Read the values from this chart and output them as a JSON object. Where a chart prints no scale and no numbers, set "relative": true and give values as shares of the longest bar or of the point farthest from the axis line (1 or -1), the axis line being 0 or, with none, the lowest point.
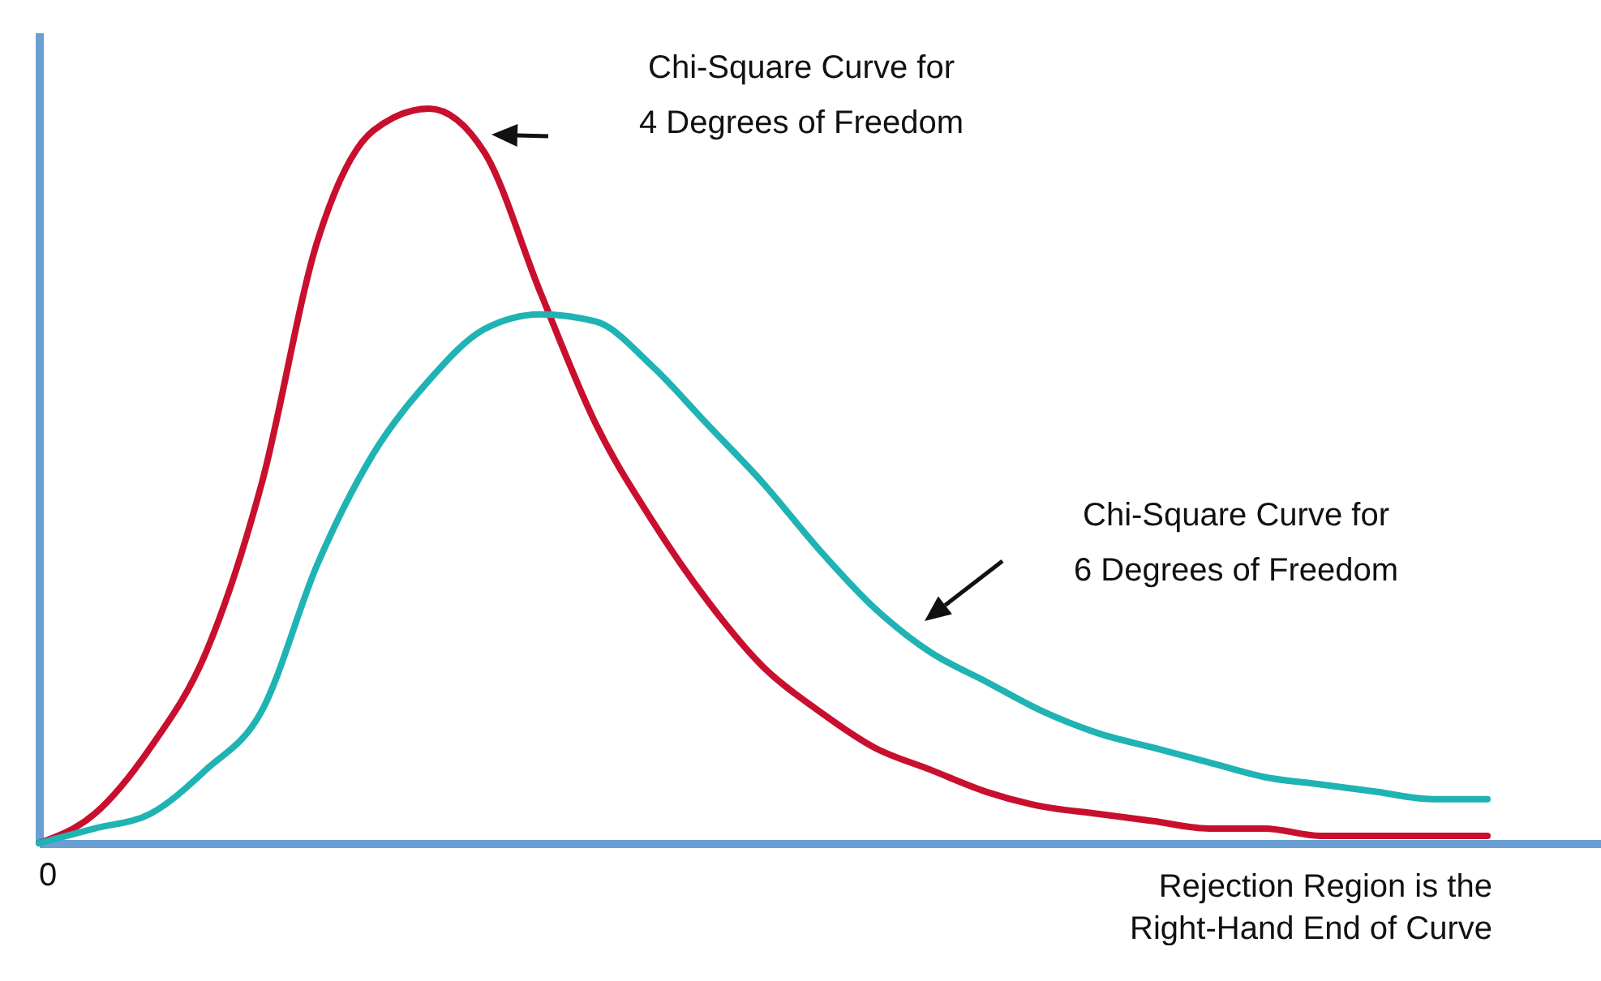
{
  "chart_data": {
    "type": "line",
    "relative": true,
    "xlabel": "Rejection Region is the\nRight-Hand End of Curve",
    "annotations": [
      "Chi-Square Curve for\n4 Degrees of Freedom",
      "Chi-Square Curve for\n6 Degrees of Freedom",
      "0"
    ],
    "categories": [
      null,
      null,
      null,
      null,
      null,
      null,
      null,
      null,
      null,
      null,
      null,
      null,
      null,
      null,
      null,
      null,
      null,
      null,
      null,
      null,
      null,
      null,
      null,
      null,
      null,
      null,
      null
    ],
    "series": [
      {
        "color": "#c8102e",
        "values": [
          0.0,
          0.04,
          0.13,
          0.26,
          0.49,
          0.82,
          0.97,
          1,
          0.94,
          0.75,
          0.57,
          0.44,
          0.33,
          0.24,
          0.18,
          0.13,
          0.1,
          0.07,
          0.05,
          0.04,
          0.03,
          0.02,
          0.02,
          0.01,
          0.01,
          0.01,
          0.01
        ]
      },
      {
        "color": "#1fb3b3",
        "values": [
          0.0,
          0.02,
          0.04,
          0.1,
          0.18,
          0.38,
          0.53,
          0.63,
          0.7,
          0.72,
          0.71,
          0.65,
          0.57,
          0.49,
          0.4,
          0.32,
          0.26,
          0.22,
          0.18,
          0.15,
          0.13,
          0.11,
          0.09,
          0.08,
          0.07,
          0.06,
          0.06
        ]
      }
    ],
    "legend": false,
    "grid": false,
    "line_style": "solid",
    "marker": "none"
  }
}
